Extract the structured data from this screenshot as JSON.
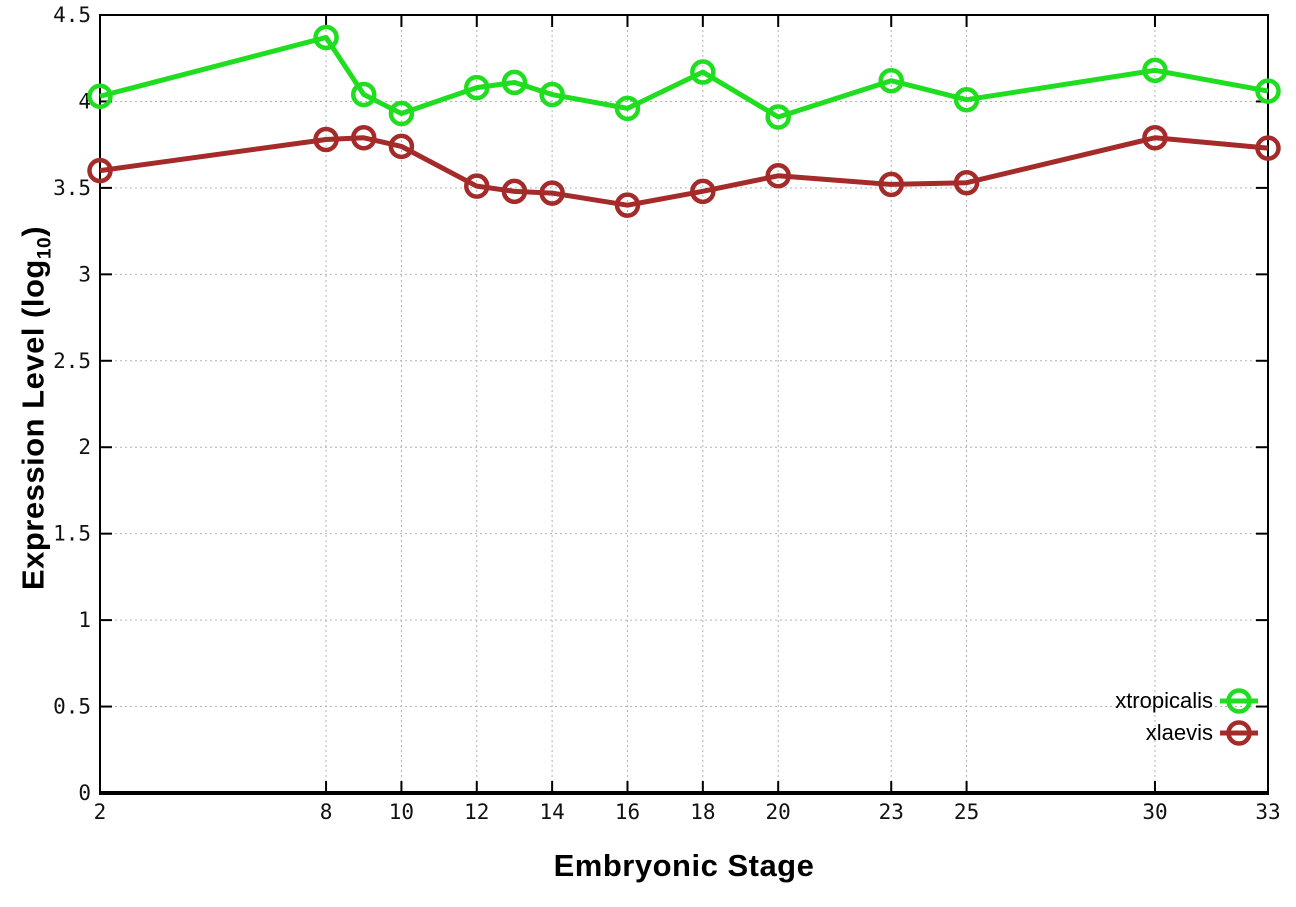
{
  "chart_data": {
    "type": "line",
    "title": "",
    "xlabel": "Embryonic Stage",
    "ylabel": "Expression Level (log10)",
    "ylabel_parts": {
      "pre": "Expression Level (log",
      "sub": "10",
      "post": ")"
    },
    "xlim": [
      2,
      33
    ],
    "ylim": [
      0,
      4.5
    ],
    "xticks": [
      2,
      8,
      10,
      12,
      14,
      16,
      18,
      20,
      23,
      25,
      30,
      33
    ],
    "yticks": [
      0,
      0.5,
      1,
      1.5,
      2,
      2.5,
      3,
      3.5,
      4,
      4.5
    ],
    "grid": true,
    "legend_position": "bottom-right",
    "background_color": "#ffffff",
    "grid_color": "#b3b3b3",
    "x": [
      2,
      8,
      9,
      10,
      12,
      13,
      14,
      16,
      18,
      20,
      23,
      25,
      30,
      33
    ],
    "series": [
      {
        "name": "xtropicalis",
        "color": "#1fdd1f",
        "values": [
          4.03,
          4.37,
          4.04,
          3.93,
          4.08,
          4.11,
          4.04,
          3.96,
          4.17,
          3.91,
          4.12,
          4.01,
          4.18,
          4.06
        ]
      },
      {
        "name": "xlaevis",
        "color": "#a52a2a",
        "values": [
          3.6,
          3.78,
          3.79,
          3.74,
          3.51,
          3.48,
          3.47,
          3.4,
          3.48,
          3.57,
          3.52,
          3.53,
          3.79,
          3.73
        ]
      }
    ]
  }
}
